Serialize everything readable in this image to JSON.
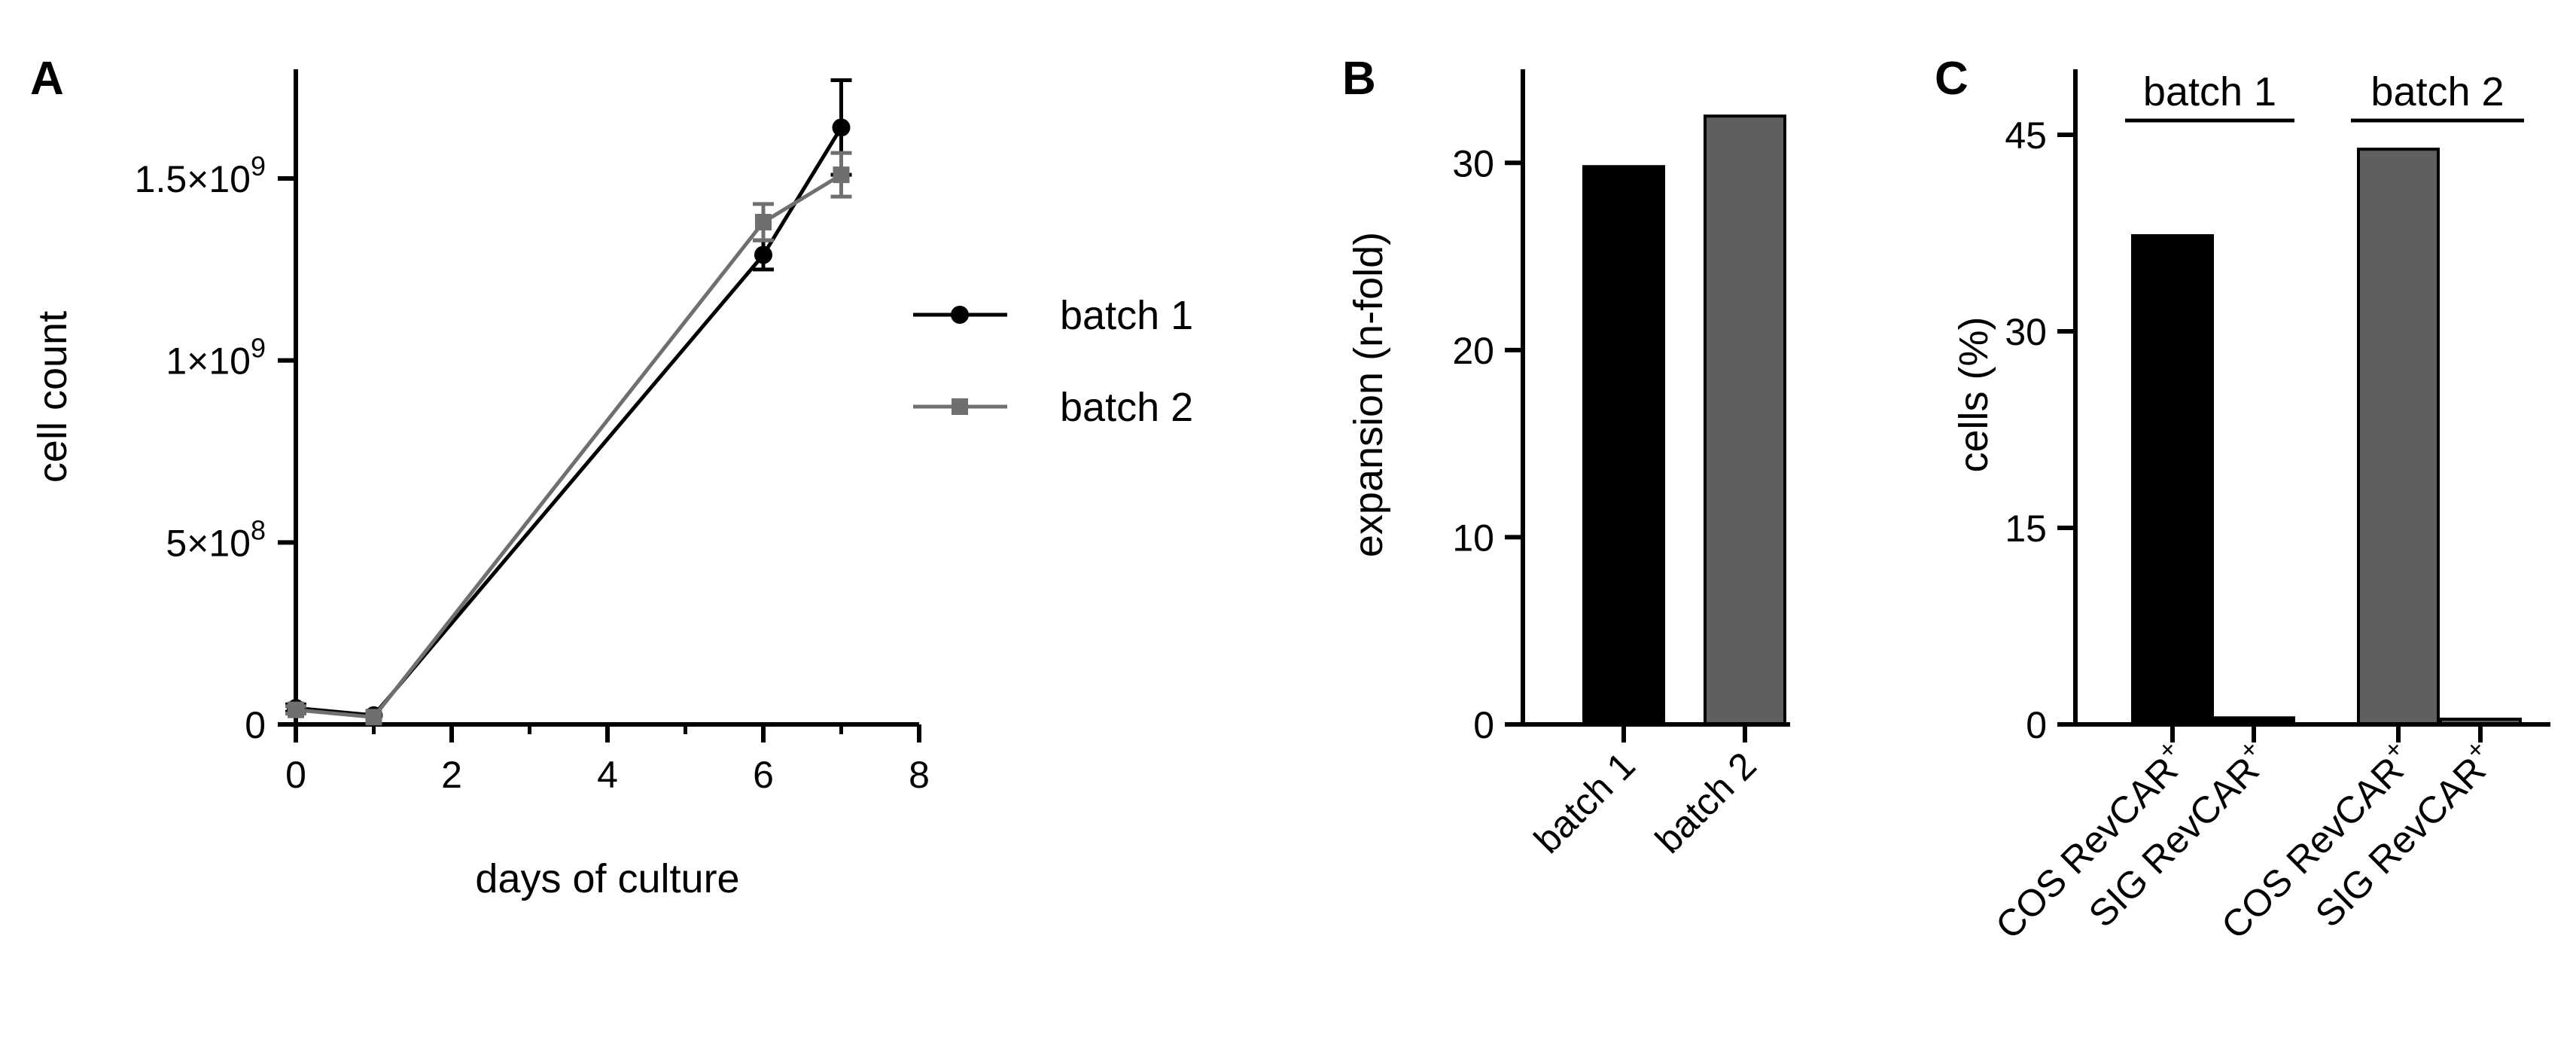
{
  "chart_data": [
    {
      "panel": "A",
      "type": "line",
      "xlabel": "days of culture",
      "ylabel": "cell count",
      "xlim": [
        0,
        8
      ],
      "ylim": [
        0,
        1800000000
      ],
      "xticks": [
        0,
        2,
        4,
        6,
        8
      ],
      "yticks": [
        {
          "value": 0,
          "mantissa": "0",
          "exp": ""
        },
        {
          "value": 500000000,
          "mantissa": "5×10",
          "exp": "8"
        },
        {
          "value": 1000000000,
          "mantissa": "1×10",
          "exp": "9"
        },
        {
          "value": 1500000000,
          "mantissa": "1.5×10",
          "exp": "9"
        }
      ],
      "series": [
        {
          "name": "batch 1",
          "color": "#000000",
          "marker": "circle",
          "x": [
            0,
            1,
            6,
            7
          ],
          "y": [
            45000000,
            25000000,
            1290000000,
            1640000000
          ],
          "err": [
            10000000,
            5000000,
            40000000,
            130000000
          ]
        },
        {
          "name": "batch 2",
          "color": "#6f6f6f",
          "marker": "square",
          "x": [
            0,
            1,
            6,
            7
          ],
          "y": [
            40000000,
            20000000,
            1380000000,
            1510000000
          ],
          "err": [
            10000000,
            5000000,
            50000000,
            60000000
          ]
        }
      ],
      "legend": "right"
    },
    {
      "panel": "B",
      "type": "bar",
      "ylabel": "expansion (n-fold)",
      "ylim": [
        0,
        35
      ],
      "yticks": [
        0,
        10,
        20,
        30
      ],
      "categories": [
        "batch 1",
        "batch 2"
      ],
      "values": [
        29.8,
        32.5
      ],
      "colors": [
        "#000000",
        "#5f5f5f"
      ]
    },
    {
      "panel": "C",
      "type": "bar",
      "ylabel": "cells (%)",
      "ylim": [
        0,
        50
      ],
      "yticks": [
        0,
        15,
        30,
        45
      ],
      "groups": [
        {
          "label": "batch 1",
          "color": "#000000",
          "categories": [
            {
              "name": "COS RevCAR",
              "sup": "+"
            },
            {
              "name": "SIG RevCAR",
              "sup": "+"
            }
          ],
          "values": [
            37.3,
            0.5
          ]
        },
        {
          "label": "batch 2",
          "color": "#5f5f5f",
          "categories": [
            {
              "name": "COS RevCAR",
              "sup": "+"
            },
            {
              "name": "SIG RevCAR",
              "sup": "+"
            }
          ],
          "values": [
            43.9,
            0.4
          ]
        }
      ]
    }
  ]
}
